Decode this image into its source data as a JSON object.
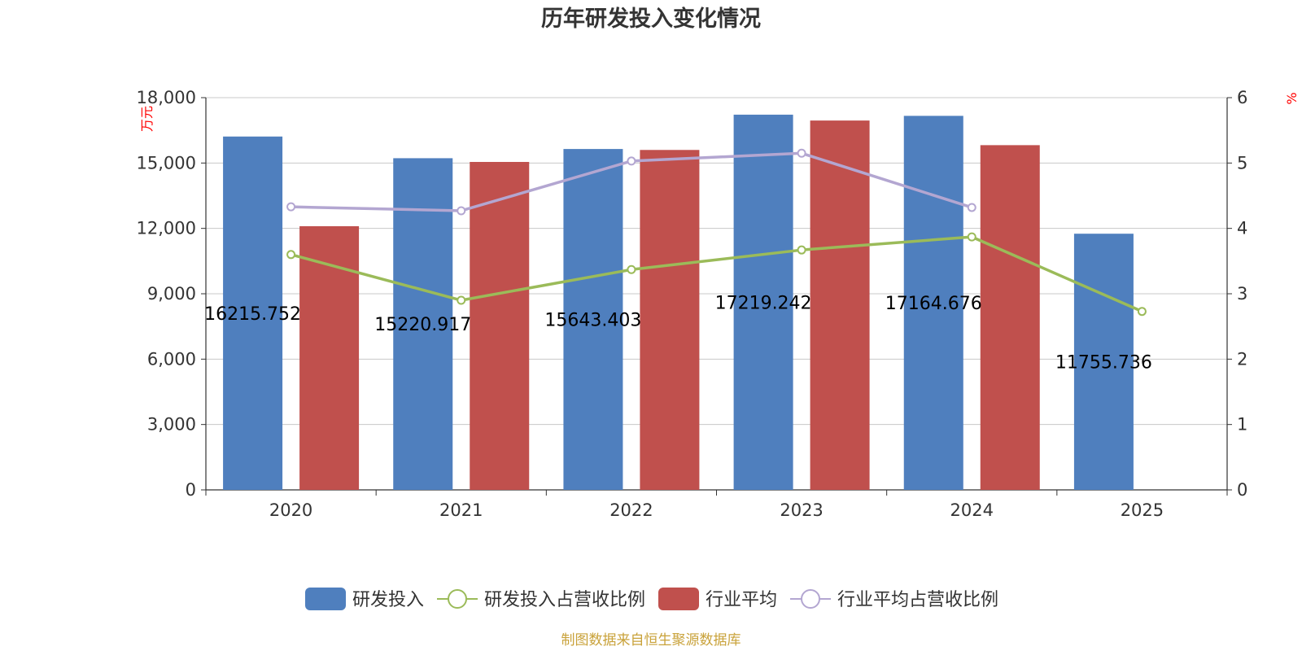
{
  "chart_data": {
    "type": "bar",
    "title": "历年研发投入变化情况",
    "categories": [
      "2020",
      "2021",
      "2022",
      "2023",
      "2024",
      "2025"
    ],
    "y_left": {
      "unit": "万元",
      "ylim": [
        0,
        18000
      ],
      "ticks": [
        "0",
        "3,000",
        "6,000",
        "9,000",
        "12,000",
        "15,000",
        "18,000"
      ]
    },
    "y_right": {
      "unit": "%",
      "ylim": [
        0,
        6
      ],
      "ticks": [
        "0",
        "1",
        "2",
        "3",
        "4",
        "5",
        "6"
      ]
    },
    "series": [
      {
        "name": "研发投入",
        "type": "bar",
        "axis": "left",
        "color": "#4f7fbe",
        "values": [
          16215.752,
          15220.917,
          15643.403,
          17219.242,
          17164.676,
          11755.736
        ],
        "labels": [
          "16215.752",
          "15220.917",
          "15643.403",
          "17219.242",
          "17164.676",
          "11755.736"
        ]
      },
      {
        "name": "研发投入占营收比例",
        "type": "line",
        "axis": "right",
        "color": "#9bbb59",
        "values": [
          3.6,
          2.9,
          3.37,
          3.67,
          3.87,
          2.73
        ]
      },
      {
        "name": "行业平均",
        "type": "bar",
        "axis": "left",
        "color": "#c0504d",
        "values": [
          12100,
          15050,
          15600,
          16950,
          15820,
          null
        ]
      },
      {
        "name": "行业平均占营收比例",
        "type": "line",
        "axis": "right",
        "color": "#b3a6d1",
        "values": [
          4.33,
          4.27,
          5.03,
          5.15,
          4.32,
          null
        ]
      }
    ],
    "grid": true,
    "legend_position": "bottom"
  },
  "footer": {
    "source": "制图数据来自恒生聚源数据库"
  }
}
